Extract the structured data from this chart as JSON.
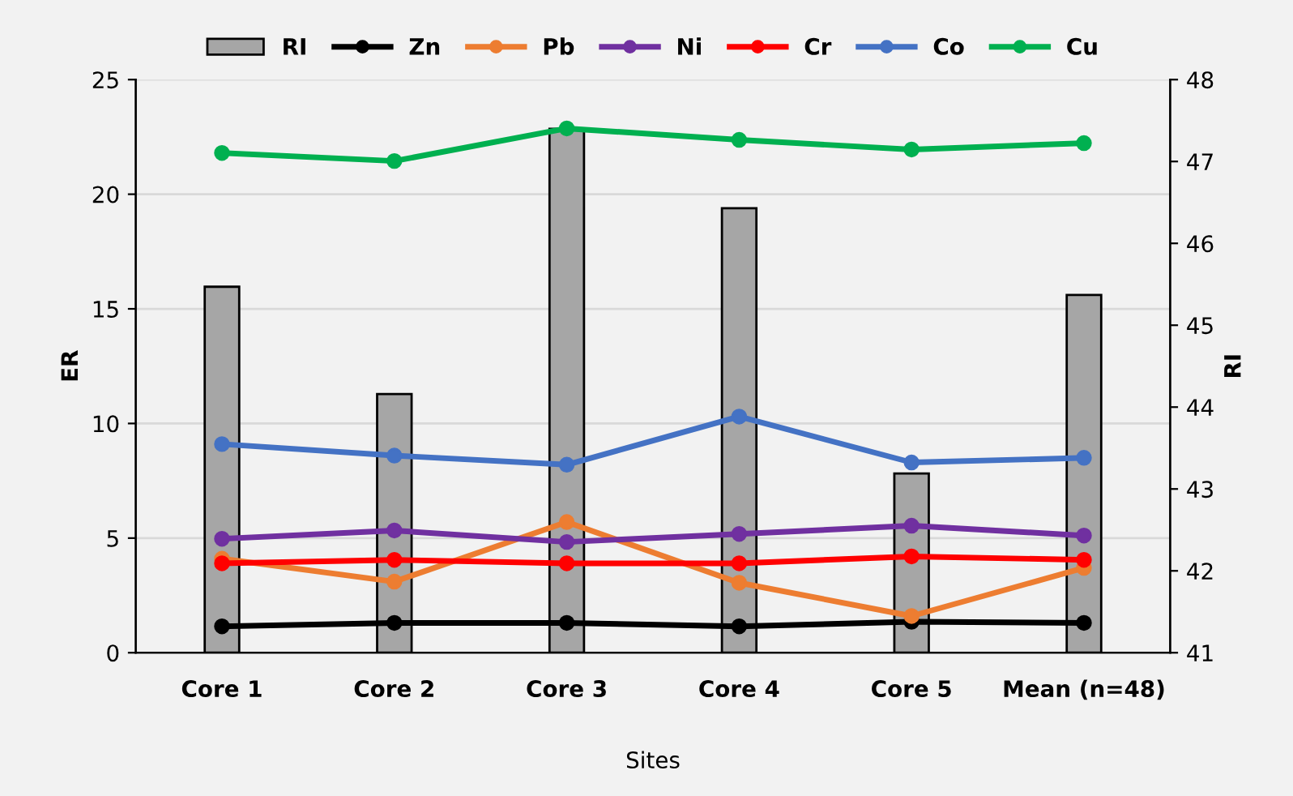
{
  "chart_data": {
    "type": "line",
    "xlabel": "Sites",
    "ylabel": "ER",
    "y2label": "RI",
    "categories": [
      "Core 1",
      "Core 2",
      "Core 3",
      "Core 4",
      "Core 5",
      "Mean (n=48)"
    ],
    "series": [
      {
        "name": "RI",
        "type": "bar",
        "axis": "y2",
        "color": "#a6a6a6",
        "values": [
          45.47,
          44.16,
          47.4,
          46.43,
          43.19,
          45.37
        ]
      },
      {
        "name": "Zn",
        "color": "#000000",
        "values": [
          1.15,
          1.3,
          1.3,
          1.15,
          1.35,
          1.3
        ]
      },
      {
        "name": "Pb",
        "color": "#ed7d31",
        "values": [
          4.1,
          3.1,
          5.7,
          3.05,
          1.6,
          3.7
        ]
      },
      {
        "name": "Ni",
        "color": "#7030a0",
        "values": [
          4.97,
          5.33,
          4.83,
          5.18,
          5.54,
          5.11
        ]
      },
      {
        "name": "Cr",
        "color": "#ff0000",
        "values": [
          3.9,
          4.05,
          3.9,
          3.9,
          4.2,
          4.05
        ]
      },
      {
        "name": "Co",
        "color": "#4472c4",
        "values": [
          9.1,
          8.6,
          8.2,
          10.3,
          8.3,
          8.5
        ]
      },
      {
        "name": "Cu",
        "color": "#00b050",
        "values": [
          21.8,
          21.45,
          22.87,
          22.37,
          21.95,
          22.23
        ]
      }
    ],
    "ylim": [
      0,
      25
    ],
    "yticks": [
      0,
      5,
      10,
      15,
      20,
      25
    ],
    "y2lim": [
      41,
      48
    ],
    "y2ticks": [
      41,
      42,
      43,
      44,
      45,
      46,
      47,
      48
    ],
    "grid": "y",
    "legend": "top",
    "marker": "circle",
    "line_style": "solid"
  }
}
